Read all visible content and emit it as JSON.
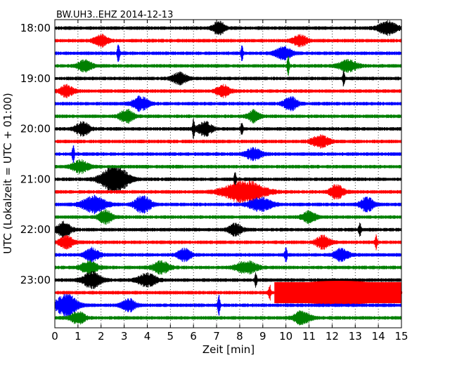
{
  "chart_data": {
    "type": "line",
    "title": "BW.UH3..EHZ 2014-12-13",
    "xlabel": "Zeit  [min]",
    "ylabel": "UTC (Lokalzeit = UTC + 01:00)",
    "xlim": [
      0,
      15
    ],
    "x_ticks": [
      0,
      1,
      2,
      3,
      4,
      5,
      6,
      7,
      8,
      9,
      10,
      11,
      12,
      13,
      14,
      15
    ],
    "x_tick_labels": [
      "0",
      "1",
      "2",
      "3",
      "4",
      "5",
      "6",
      "7",
      "8",
      "9",
      "10",
      "11",
      "12",
      "13",
      "14",
      "15"
    ],
    "y_tick_labels": [
      {
        "label": "18:00",
        "trace_index": 0
      },
      {
        "label": "19:00",
        "trace_index": 4
      },
      {
        "label": "20:00",
        "trace_index": 8
      },
      {
        "label": "21:00",
        "trace_index": 12
      },
      {
        "label": "22:00",
        "trace_index": 16
      },
      {
        "label": "23:00",
        "trace_index": 20
      }
    ],
    "grid": {
      "vertical": "dotted"
    },
    "trace_color_cycle": [
      "#000000",
      "#ff0000",
      "#0000ff",
      "#008000"
    ],
    "traces": [
      {
        "start": "18:00",
        "color": "#000000",
        "bursts": [
          [
            7.1,
            0.25,
            1.6
          ],
          [
            14.4,
            0.4,
            1.5
          ]
        ]
      },
      {
        "start": "18:15",
        "color": "#ff0000",
        "bursts": [
          [
            2.0,
            0.3,
            1.3
          ],
          [
            10.6,
            0.3,
            1.3
          ]
        ]
      },
      {
        "start": "18:30",
        "color": "#0000ff",
        "bursts": [
          [
            2.75,
            0.05,
            2.2
          ],
          [
            8.1,
            0.05,
            1.8
          ],
          [
            9.9,
            0.35,
            1.4
          ]
        ]
      },
      {
        "start": "18:45",
        "color": "#008000",
        "bursts": [
          [
            1.3,
            0.3,
            1.4
          ],
          [
            10.1,
            0.05,
            2.0
          ],
          [
            12.7,
            0.4,
            1.3
          ]
        ]
      },
      {
        "start": "19:00",
        "color": "#000000",
        "bursts": [
          [
            5.4,
            0.3,
            1.4
          ],
          [
            12.5,
            0.05,
            2.0
          ]
        ]
      },
      {
        "start": "19:15",
        "color": "#ff0000",
        "bursts": [
          [
            0.5,
            0.3,
            1.3
          ],
          [
            7.3,
            0.3,
            1.3
          ]
        ]
      },
      {
        "start": "19:30",
        "color": "#0000ff",
        "bursts": [
          [
            3.7,
            0.35,
            1.6
          ],
          [
            10.2,
            0.3,
            1.5
          ]
        ]
      },
      {
        "start": "19:45",
        "color": "#008000",
        "bursts": [
          [
            3.1,
            0.3,
            1.5
          ],
          [
            8.6,
            0.25,
            1.3
          ]
        ]
      },
      {
        "start": "20:00",
        "color": "#000000",
        "bursts": [
          [
            1.2,
            0.3,
            1.6
          ],
          [
            6.0,
            0.05,
            1.8
          ],
          [
            6.5,
            0.3,
            1.6
          ],
          [
            8.1,
            0.05,
            1.6
          ]
        ]
      },
      {
        "start": "20:15",
        "color": "#ff0000",
        "bursts": [
          [
            11.5,
            0.4,
            1.3
          ]
        ]
      },
      {
        "start": "20:30",
        "color": "#0000ff",
        "bursts": [
          [
            0.8,
            0.05,
            2.0
          ],
          [
            8.6,
            0.35,
            1.3
          ]
        ]
      },
      {
        "start": "20:45",
        "color": "#008000",
        "bursts": [
          [
            1.1,
            0.35,
            1.4
          ]
        ]
      },
      {
        "start": "21:00",
        "color": "#000000",
        "bursts": [
          [
            2.6,
            0.55,
            3.4
          ],
          [
            7.8,
            0.05,
            1.6
          ]
        ]
      },
      {
        "start": "21:15",
        "color": "#ff0000",
        "bursts": [
          [
            8.2,
            0.85,
            2.6
          ],
          [
            12.2,
            0.3,
            1.6
          ]
        ]
      },
      {
        "start": "21:30",
        "color": "#0000ff",
        "bursts": [
          [
            1.7,
            0.5,
            1.9
          ],
          [
            3.8,
            0.35,
            2.0
          ],
          [
            8.9,
            0.5,
            1.5
          ],
          [
            13.5,
            0.3,
            1.6
          ]
        ]
      },
      {
        "start": "21:45",
        "color": "#008000",
        "bursts": [
          [
            2.2,
            0.3,
            1.5
          ],
          [
            11.0,
            0.3,
            1.3
          ]
        ]
      },
      {
        "start": "22:00",
        "color": "#000000",
        "bursts": [
          [
            0.4,
            0.3,
            1.7
          ],
          [
            7.8,
            0.3,
            1.3
          ],
          [
            13.2,
            0.05,
            1.6
          ]
        ]
      },
      {
        "start": "22:15",
        "color": "#ff0000",
        "bursts": [
          [
            0.5,
            0.3,
            1.4
          ],
          [
            11.6,
            0.3,
            1.5
          ],
          [
            13.9,
            0.05,
            1.6
          ]
        ]
      },
      {
        "start": "22:30",
        "color": "#0000ff",
        "bursts": [
          [
            1.6,
            0.3,
            1.5
          ],
          [
            5.6,
            0.3,
            1.4
          ],
          [
            10.0,
            0.05,
            2.0
          ],
          [
            12.4,
            0.3,
            1.4
          ]
        ]
      },
      {
        "start": "22:45",
        "color": "#008000",
        "bursts": [
          [
            1.5,
            0.35,
            1.5
          ],
          [
            4.6,
            0.35,
            1.4
          ],
          [
            8.3,
            0.45,
            1.4
          ]
        ]
      },
      {
        "start": "23:00",
        "color": "#000000",
        "bursts": [
          [
            1.6,
            0.4,
            1.8
          ],
          [
            4.0,
            0.4,
            1.5
          ],
          [
            8.7,
            0.05,
            1.6
          ]
        ]
      },
      {
        "start": "23:15",
        "color": "#ff0000",
        "bursts": [
          [
            9.3,
            0.05,
            1.9
          ]
        ],
        "saturated": [
          9.5,
          15.0
        ]
      },
      {
        "start": "23:30",
        "color": "#0000ff",
        "bursts": [
          [
            0.5,
            0.45,
            2.6
          ],
          [
            7.1,
            0.05,
            2.2
          ],
          [
            3.2,
            0.3,
            1.4
          ]
        ]
      },
      {
        "start": "23:45",
        "color": "#008000",
        "bursts": [
          [
            1.0,
            0.3,
            1.4
          ],
          [
            10.7,
            0.35,
            1.5
          ]
        ]
      }
    ]
  }
}
